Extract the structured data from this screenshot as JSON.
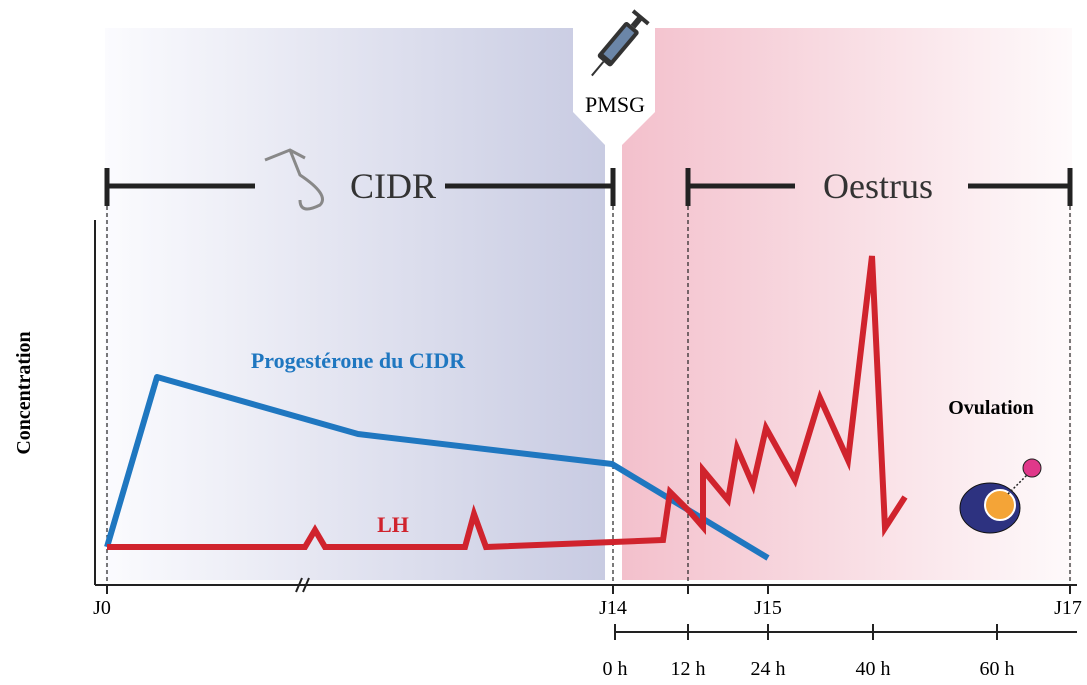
{
  "header": {
    "cidr": "CIDR",
    "oestrus": "Oestrus",
    "pmsg": "PMSG"
  },
  "axis": {
    "y_label": "Concentration",
    "days": [
      "J0",
      "J14",
      "J15",
      "J17"
    ],
    "hours": [
      "0 h",
      "12 h",
      "24 h",
      "40 h",
      "60 h"
    ]
  },
  "labels": {
    "progesterone": "Progestérone du CIDR",
    "lh": "LH",
    "ovulation": "Ovulation"
  }
}
